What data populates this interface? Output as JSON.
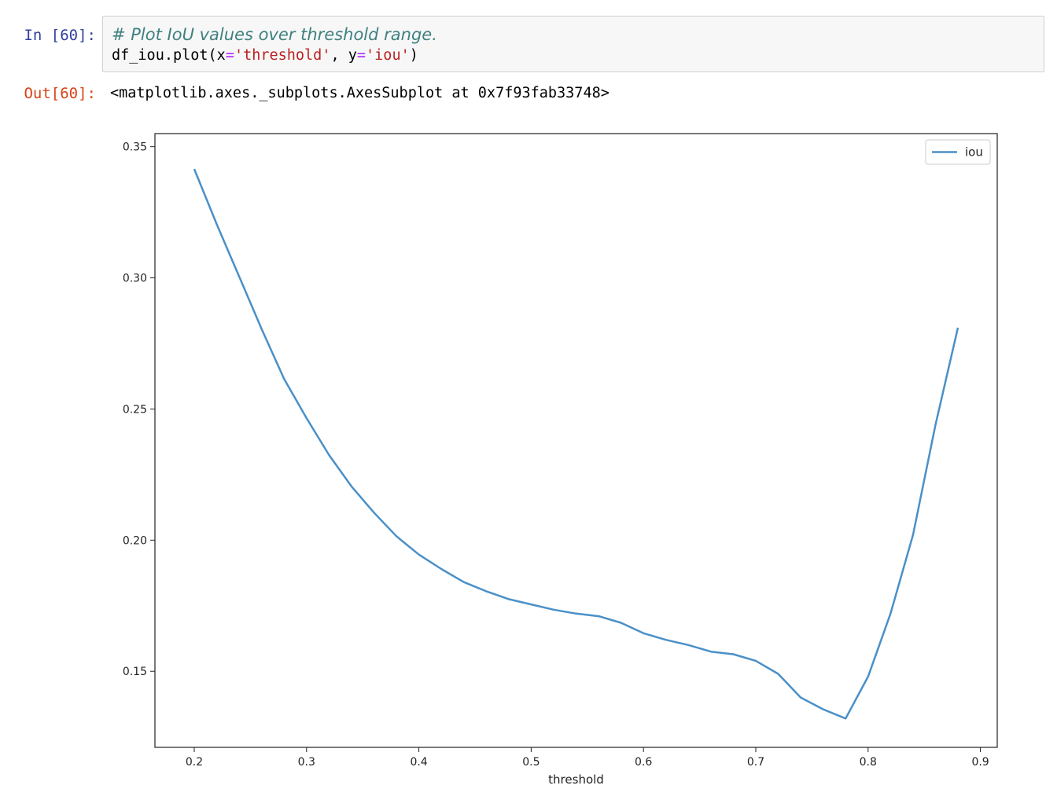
{
  "input_cell": {
    "prompt": "In [60]:",
    "comment": "# Plot IoU values over threshold range.",
    "code_prefix": "df_iou.plot(x",
    "eq1": "=",
    "str1": "'threshold'",
    "mid": ", y",
    "eq2": "=",
    "str2": "'iou'",
    "code_suffix": ")"
  },
  "output_cell": {
    "prompt": "Out[60]:",
    "text": "<matplotlib.axes._subplots.AxesSubplot at 0x7f93fab33748>"
  },
  "colors": {
    "line": "#4a90c8",
    "in_prompt": "#303f9f",
    "out_prompt": "#d84315"
  },
  "chart_data": {
    "type": "line",
    "xlabel": "threshold",
    "ylabel": "",
    "xlim": [
      0.165,
      0.915
    ],
    "ylim": [
      0.121,
      0.355
    ],
    "xticks": [
      0.2,
      0.3,
      0.4,
      0.5,
      0.6,
      0.7,
      0.8,
      0.9
    ],
    "xtick_labels": [
      "0.2",
      "0.3",
      "0.4",
      "0.5",
      "0.6",
      "0.7",
      "0.8",
      "0.9"
    ],
    "yticks": [
      0.15,
      0.2,
      0.25,
      0.3,
      0.35
    ],
    "ytick_labels": [
      "0.15",
      "0.20",
      "0.25",
      "0.30",
      "0.35"
    ],
    "legend_position": "top-right",
    "series": [
      {
        "name": "iou",
        "x": [
          0.2,
          0.22,
          0.24,
          0.26,
          0.28,
          0.3,
          0.32,
          0.34,
          0.36,
          0.38,
          0.4,
          0.42,
          0.44,
          0.46,
          0.48,
          0.5,
          0.52,
          0.54,
          0.56,
          0.58,
          0.6,
          0.62,
          0.64,
          0.66,
          0.68,
          0.7,
          0.72,
          0.74,
          0.76,
          0.78,
          0.8,
          0.82,
          0.84,
          0.86,
          0.88
        ],
        "values": [
          0.3415,
          0.3205,
          0.3005,
          0.2805,
          0.2615,
          0.2465,
          0.2325,
          0.2205,
          0.2105,
          0.2015,
          0.1945,
          0.189,
          0.184,
          0.1805,
          0.1775,
          0.1755,
          0.1735,
          0.172,
          0.171,
          0.1685,
          0.1645,
          0.162,
          0.16,
          0.1575,
          0.1565,
          0.154,
          0.149,
          0.14,
          0.1355,
          0.132,
          0.148,
          0.172,
          0.202,
          0.244,
          0.281
        ]
      }
    ]
  }
}
